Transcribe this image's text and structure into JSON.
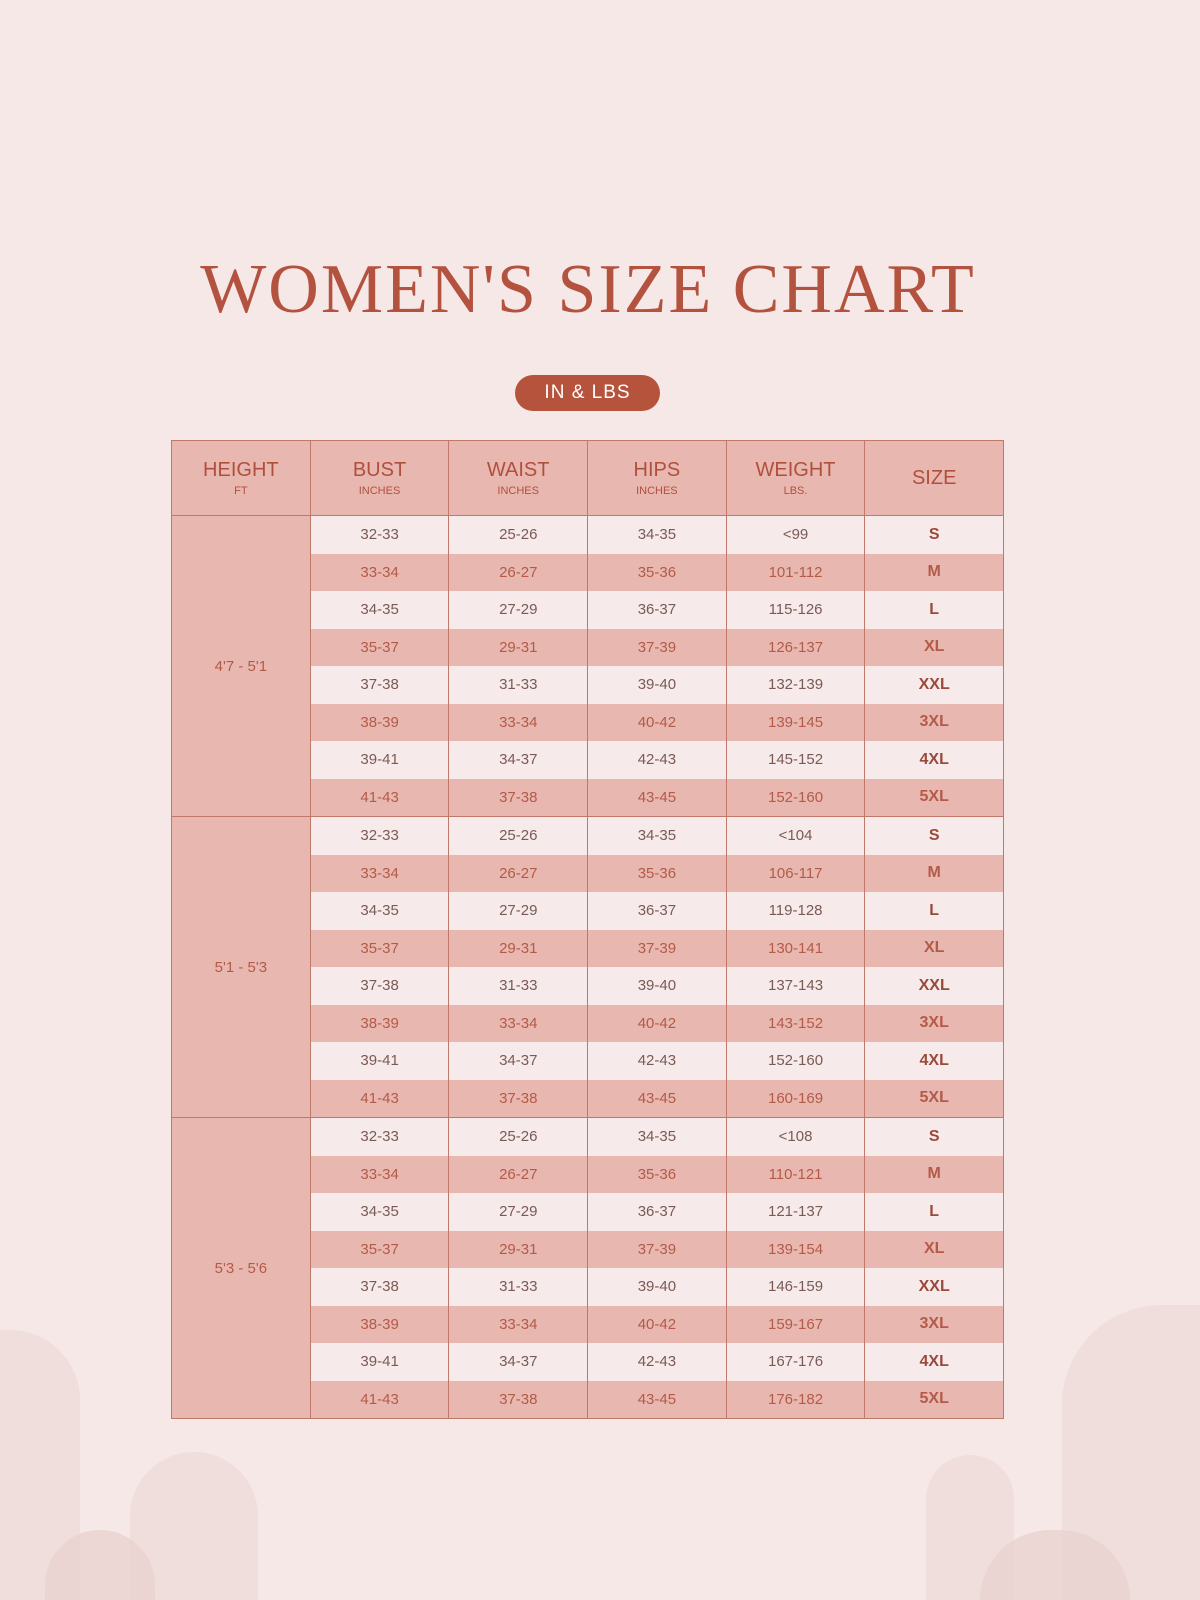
{
  "title": "WOMEN'S SIZE CHART",
  "unit_badge": "IN & LBS",
  "colors": {
    "background": "#f7e8e8",
    "accent": "#b5533c",
    "row_pink": "#e8b8b0",
    "row_light": "#f7eaea",
    "border": "#c0786a"
  },
  "headers": [
    {
      "main": "HEIGHT",
      "sub": "FT"
    },
    {
      "main": "BUST",
      "sub": "INCHES"
    },
    {
      "main": "WAIST",
      "sub": "INCHES"
    },
    {
      "main": "HIPS",
      "sub": "INCHES"
    },
    {
      "main": "WEIGHT",
      "sub": "LBS."
    },
    {
      "main": "SIZE",
      "sub": ""
    }
  ],
  "groups": [
    {
      "height": "4'7 - 5'1",
      "rows": [
        [
          "32-33",
          "25-26",
          "34-35",
          "<99",
          "S"
        ],
        [
          "33-34",
          "26-27",
          "35-36",
          "101-112",
          "M"
        ],
        [
          "34-35",
          "27-29",
          "36-37",
          "115-126",
          "L"
        ],
        [
          "35-37",
          "29-31",
          "37-39",
          "126-137",
          "XL"
        ],
        [
          "37-38",
          "31-33",
          "39-40",
          "132-139",
          "XXL"
        ],
        [
          "38-39",
          "33-34",
          "40-42",
          "139-145",
          "3XL"
        ],
        [
          "39-41",
          "34-37",
          "42-43",
          "145-152",
          "4XL"
        ],
        [
          "41-43",
          "37-38",
          "43-45",
          "152-160",
          "5XL"
        ]
      ]
    },
    {
      "height": "5'1 - 5'3",
      "rows": [
        [
          "32-33",
          "25-26",
          "34-35",
          "<104",
          "S"
        ],
        [
          "33-34",
          "26-27",
          "35-36",
          "106-117",
          "M"
        ],
        [
          "34-35",
          "27-29",
          "36-37",
          "119-128",
          "L"
        ],
        [
          "35-37",
          "29-31",
          "37-39",
          "130-141",
          "XL"
        ],
        [
          "37-38",
          "31-33",
          "39-40",
          "137-143",
          "XXL"
        ],
        [
          "38-39",
          "33-34",
          "40-42",
          "143-152",
          "3XL"
        ],
        [
          "39-41",
          "34-37",
          "42-43",
          "152-160",
          "4XL"
        ],
        [
          "41-43",
          "37-38",
          "43-45",
          "160-169",
          "5XL"
        ]
      ]
    },
    {
      "height": "5'3 - 5'6",
      "rows": [
        [
          "32-33",
          "25-26",
          "34-35",
          "<108",
          "S"
        ],
        [
          "33-34",
          "26-27",
          "35-36",
          "110-121",
          "M"
        ],
        [
          "34-35",
          "27-29",
          "36-37",
          "121-137",
          "L"
        ],
        [
          "35-37",
          "29-31",
          "37-39",
          "139-154",
          "XL"
        ],
        [
          "37-38",
          "31-33",
          "39-40",
          "146-159",
          "XXL"
        ],
        [
          "38-39",
          "33-34",
          "40-42",
          "159-167",
          "3XL"
        ],
        [
          "39-41",
          "34-37",
          "42-43",
          "167-176",
          "4XL"
        ],
        [
          "41-43",
          "37-38",
          "43-45",
          "176-182",
          "5XL"
        ]
      ]
    }
  ]
}
